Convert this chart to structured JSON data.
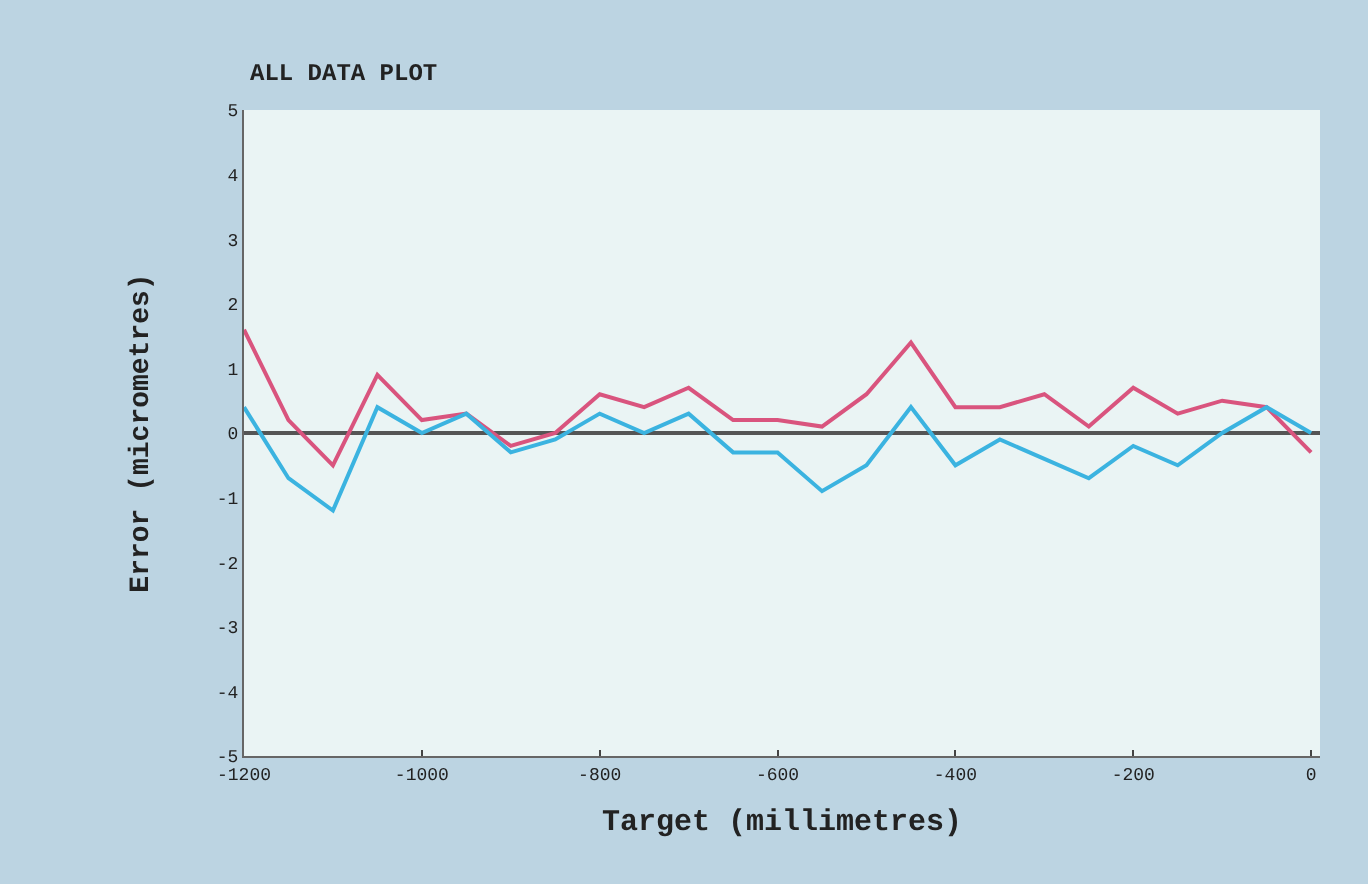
{
  "chart_data": {
    "type": "line",
    "title": "ALL DATA PLOT",
    "xlabel": "Target (millimetres)",
    "ylabel": "Error (micrometres)",
    "x": [
      -1200,
      -1150,
      -1100,
      -1050,
      -1000,
      -950,
      -900,
      -850,
      -800,
      -750,
      -700,
      -650,
      -600,
      -550,
      -500,
      -450,
      -400,
      -350,
      -300,
      -250,
      -200,
      -150,
      -100,
      -50,
      0
    ],
    "series": [
      {
        "color": "#d9547e",
        "values": [
          1.6,
          0.2,
          -0.5,
          0.9,
          0.2,
          0.3,
          -0.2,
          0,
          0.6,
          0.4,
          0.7,
          0.2,
          0.2,
          0.1,
          0.6,
          1.4,
          0.4,
          0.4,
          0.6,
          0.1,
          0.7,
          0.3,
          0.5,
          0.4,
          -0.3
        ]
      },
      {
        "color": "#3bb3e0",
        "values": [
          0.4,
          -0.7,
          -1.2,
          0.4,
          0,
          0.3,
          -0.3,
          -0.1,
          0.3,
          0,
          0.3,
          -0.3,
          -0.3,
          -0.9,
          -0.5,
          0.4,
          -0.5,
          -0.1,
          -0.4,
          -0.7,
          -0.2,
          -0.5,
          0,
          0.4,
          0
        ]
      }
    ],
    "xlim": [
      -1200,
      10
    ],
    "xticks": [
      -1200,
      -1000,
      -800,
      -600,
      -400,
      -200,
      0
    ],
    "ylim": [
      -5,
      5
    ],
    "yticks": [
      -5,
      -4,
      -3,
      -2,
      -1,
      0,
      1,
      2,
      3,
      4,
      5
    ],
    "ref_lines": [
      {
        "axis": "y",
        "value": 0,
        "color": "#555555"
      }
    ],
    "grid": false,
    "marker": "none",
    "line_style": "solid"
  }
}
